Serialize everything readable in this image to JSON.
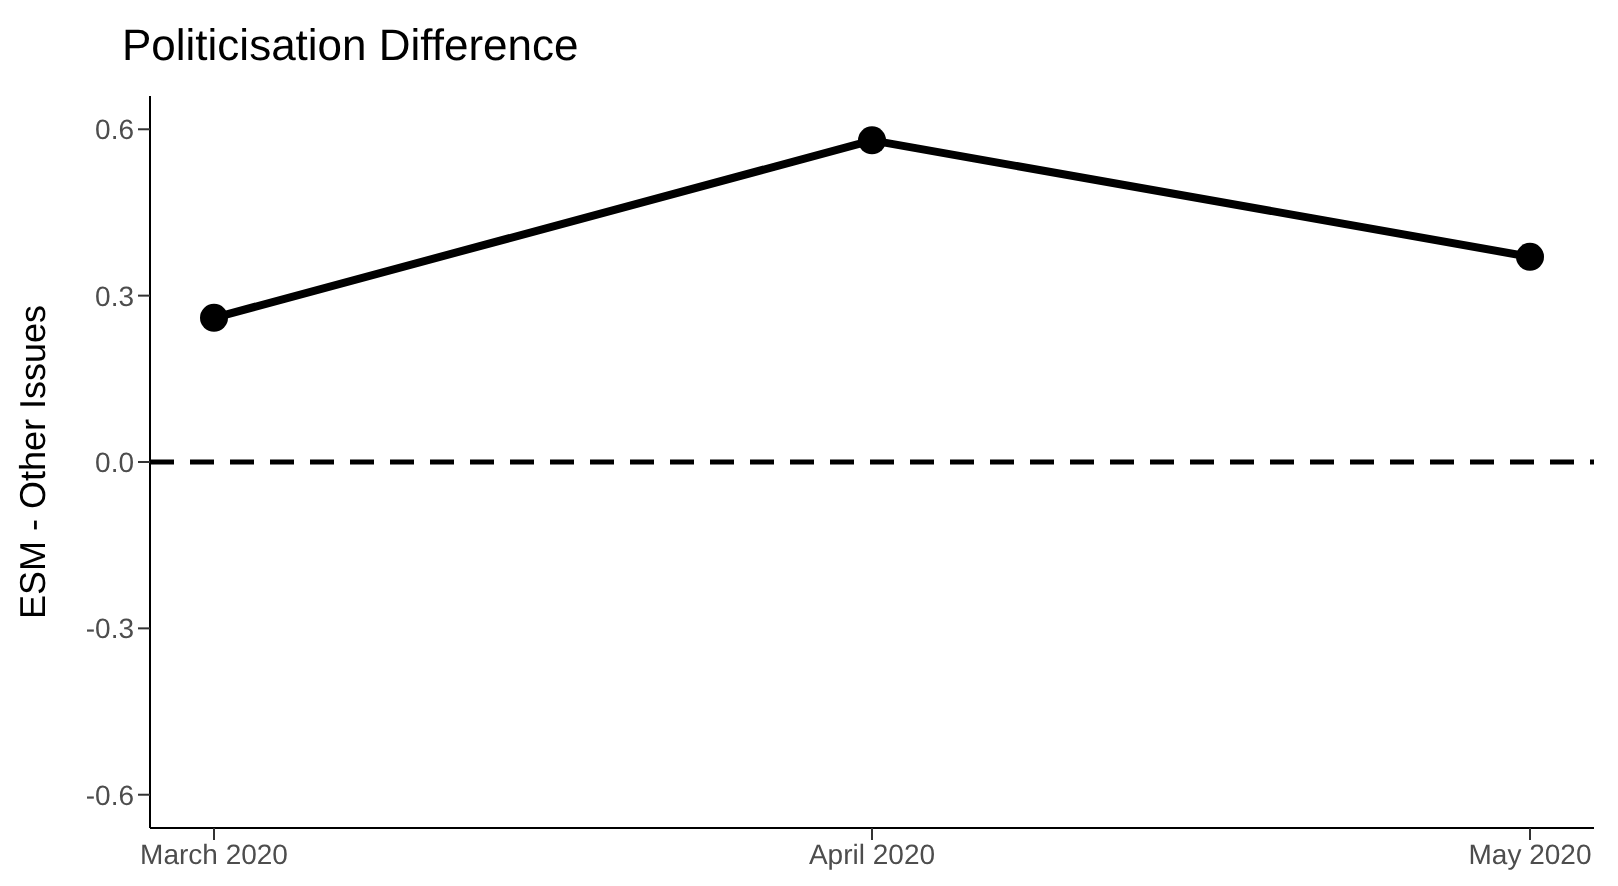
{
  "chart_data": {
    "type": "line",
    "title": "Politicisation Difference",
    "ylabel": "ESM - Other Issues",
    "categories": [
      "March 2020",
      "April 2020",
      "May 2020"
    ],
    "series": [
      {
        "color": "#000000",
        "values": [
          0.26,
          0.58,
          0.37
        ]
      }
    ],
    "ylim": [
      -0.66,
      0.66
    ],
    "yticks": [
      -0.6,
      -0.3,
      {
        "value": 0,
        "label": "0.0"
      },
      0.3,
      0.6
    ],
    "ref_lines": [
      {
        "axis": "y",
        "value": 0,
        "color": "#000000",
        "line_style": "dashed"
      }
    ],
    "marker": "circle",
    "line_style": "solid",
    "grid": false,
    "legend": false
  }
}
